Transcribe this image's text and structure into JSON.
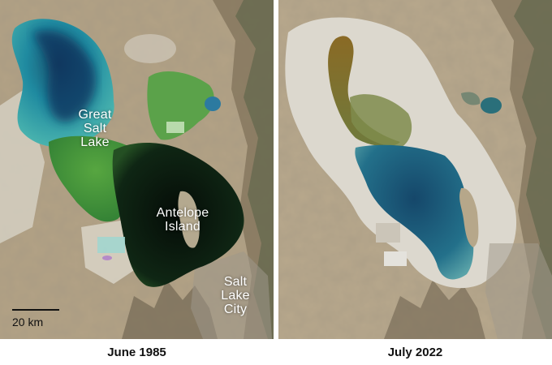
{
  "left_image": {
    "caption": "June 1985",
    "labels": {
      "great_salt_lake": "Great Salt Lake",
      "antelope_island": "Antelope Island",
      "salt_lake_city": "Salt Lake City"
    },
    "scale_bar": "20 km"
  },
  "right_image": {
    "caption": "July 2022"
  },
  "colors": {
    "water_teal": "#1d8d9c",
    "water_green": "#3c8c3a",
    "water_dark": "#0d1a12",
    "terrain": "#b9a98d",
    "salt_flat": "#dad7cf"
  }
}
